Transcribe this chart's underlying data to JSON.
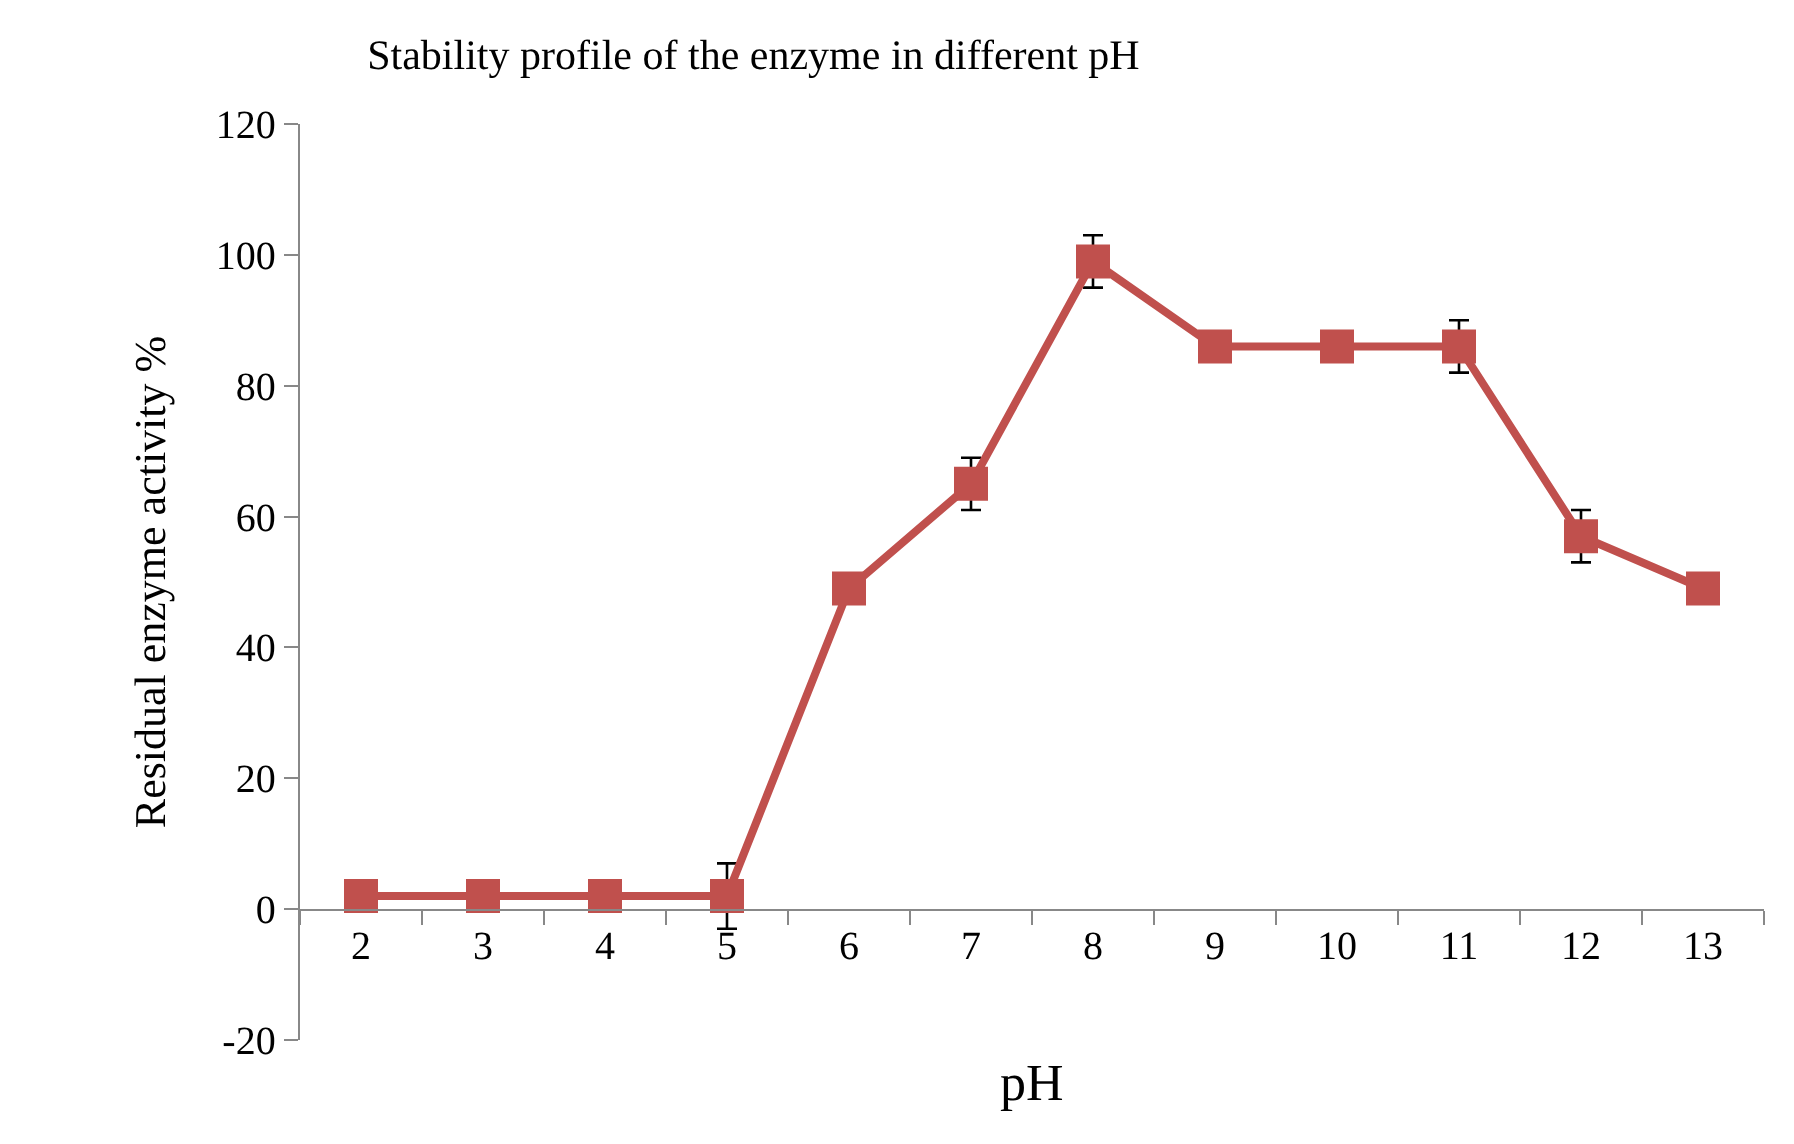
{
  "chart_data": {
    "type": "line",
    "title": "Stability profile of the enzyme in different pH",
    "xlabel": "pH",
    "ylabel": "Residual enzyme activity %",
    "categories": [
      "2",
      "3",
      "4",
      "5",
      "6",
      "7",
      "8",
      "9",
      "10",
      "11",
      "12",
      "13"
    ],
    "values": [
      2,
      2,
      2,
      2,
      49,
      65,
      99,
      86,
      86,
      86,
      57,
      49
    ],
    "errors": [
      null,
      null,
      null,
      5,
      null,
      4,
      4,
      null,
      null,
      4,
      4,
      null
    ],
    "color": "#c0504d",
    "marker": "square",
    "line_style": "solid",
    "ylim": [
      -20,
      120
    ],
    "yticks": [
      -20,
      0,
      20,
      40,
      60,
      80,
      100,
      120
    ],
    "grid": false,
    "legend": false
  }
}
